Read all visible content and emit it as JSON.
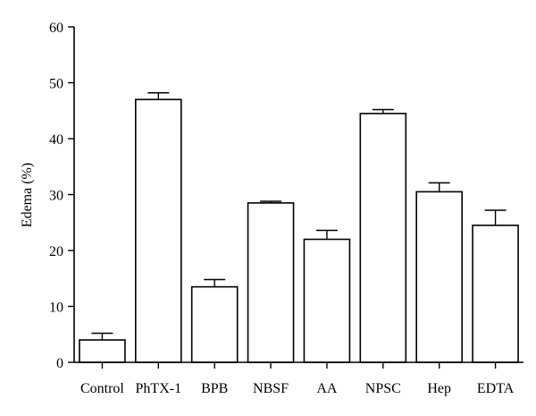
{
  "chart_data": {
    "type": "bar",
    "title": "",
    "xlabel": "",
    "ylabel": "Edema (%)",
    "ylim": [
      0,
      60
    ],
    "yticks": [
      0,
      10,
      20,
      30,
      40,
      50,
      60
    ],
    "categories": [
      "Control",
      "PhTX-1",
      "BPB",
      "NBSF",
      "AA",
      "NPSC",
      "Hep",
      "EDTA"
    ],
    "values": [
      4,
      47,
      13.5,
      28.5,
      22,
      44.5,
      30.5,
      24.5
    ],
    "errors": [
      1.2,
      1.2,
      1.3,
      0.3,
      1.6,
      0.7,
      1.6,
      2.7
    ],
    "grid": false,
    "legend": "none",
    "colors": {
      "bar_fill": "#ffffff",
      "bar_stroke": "#000000"
    }
  }
}
